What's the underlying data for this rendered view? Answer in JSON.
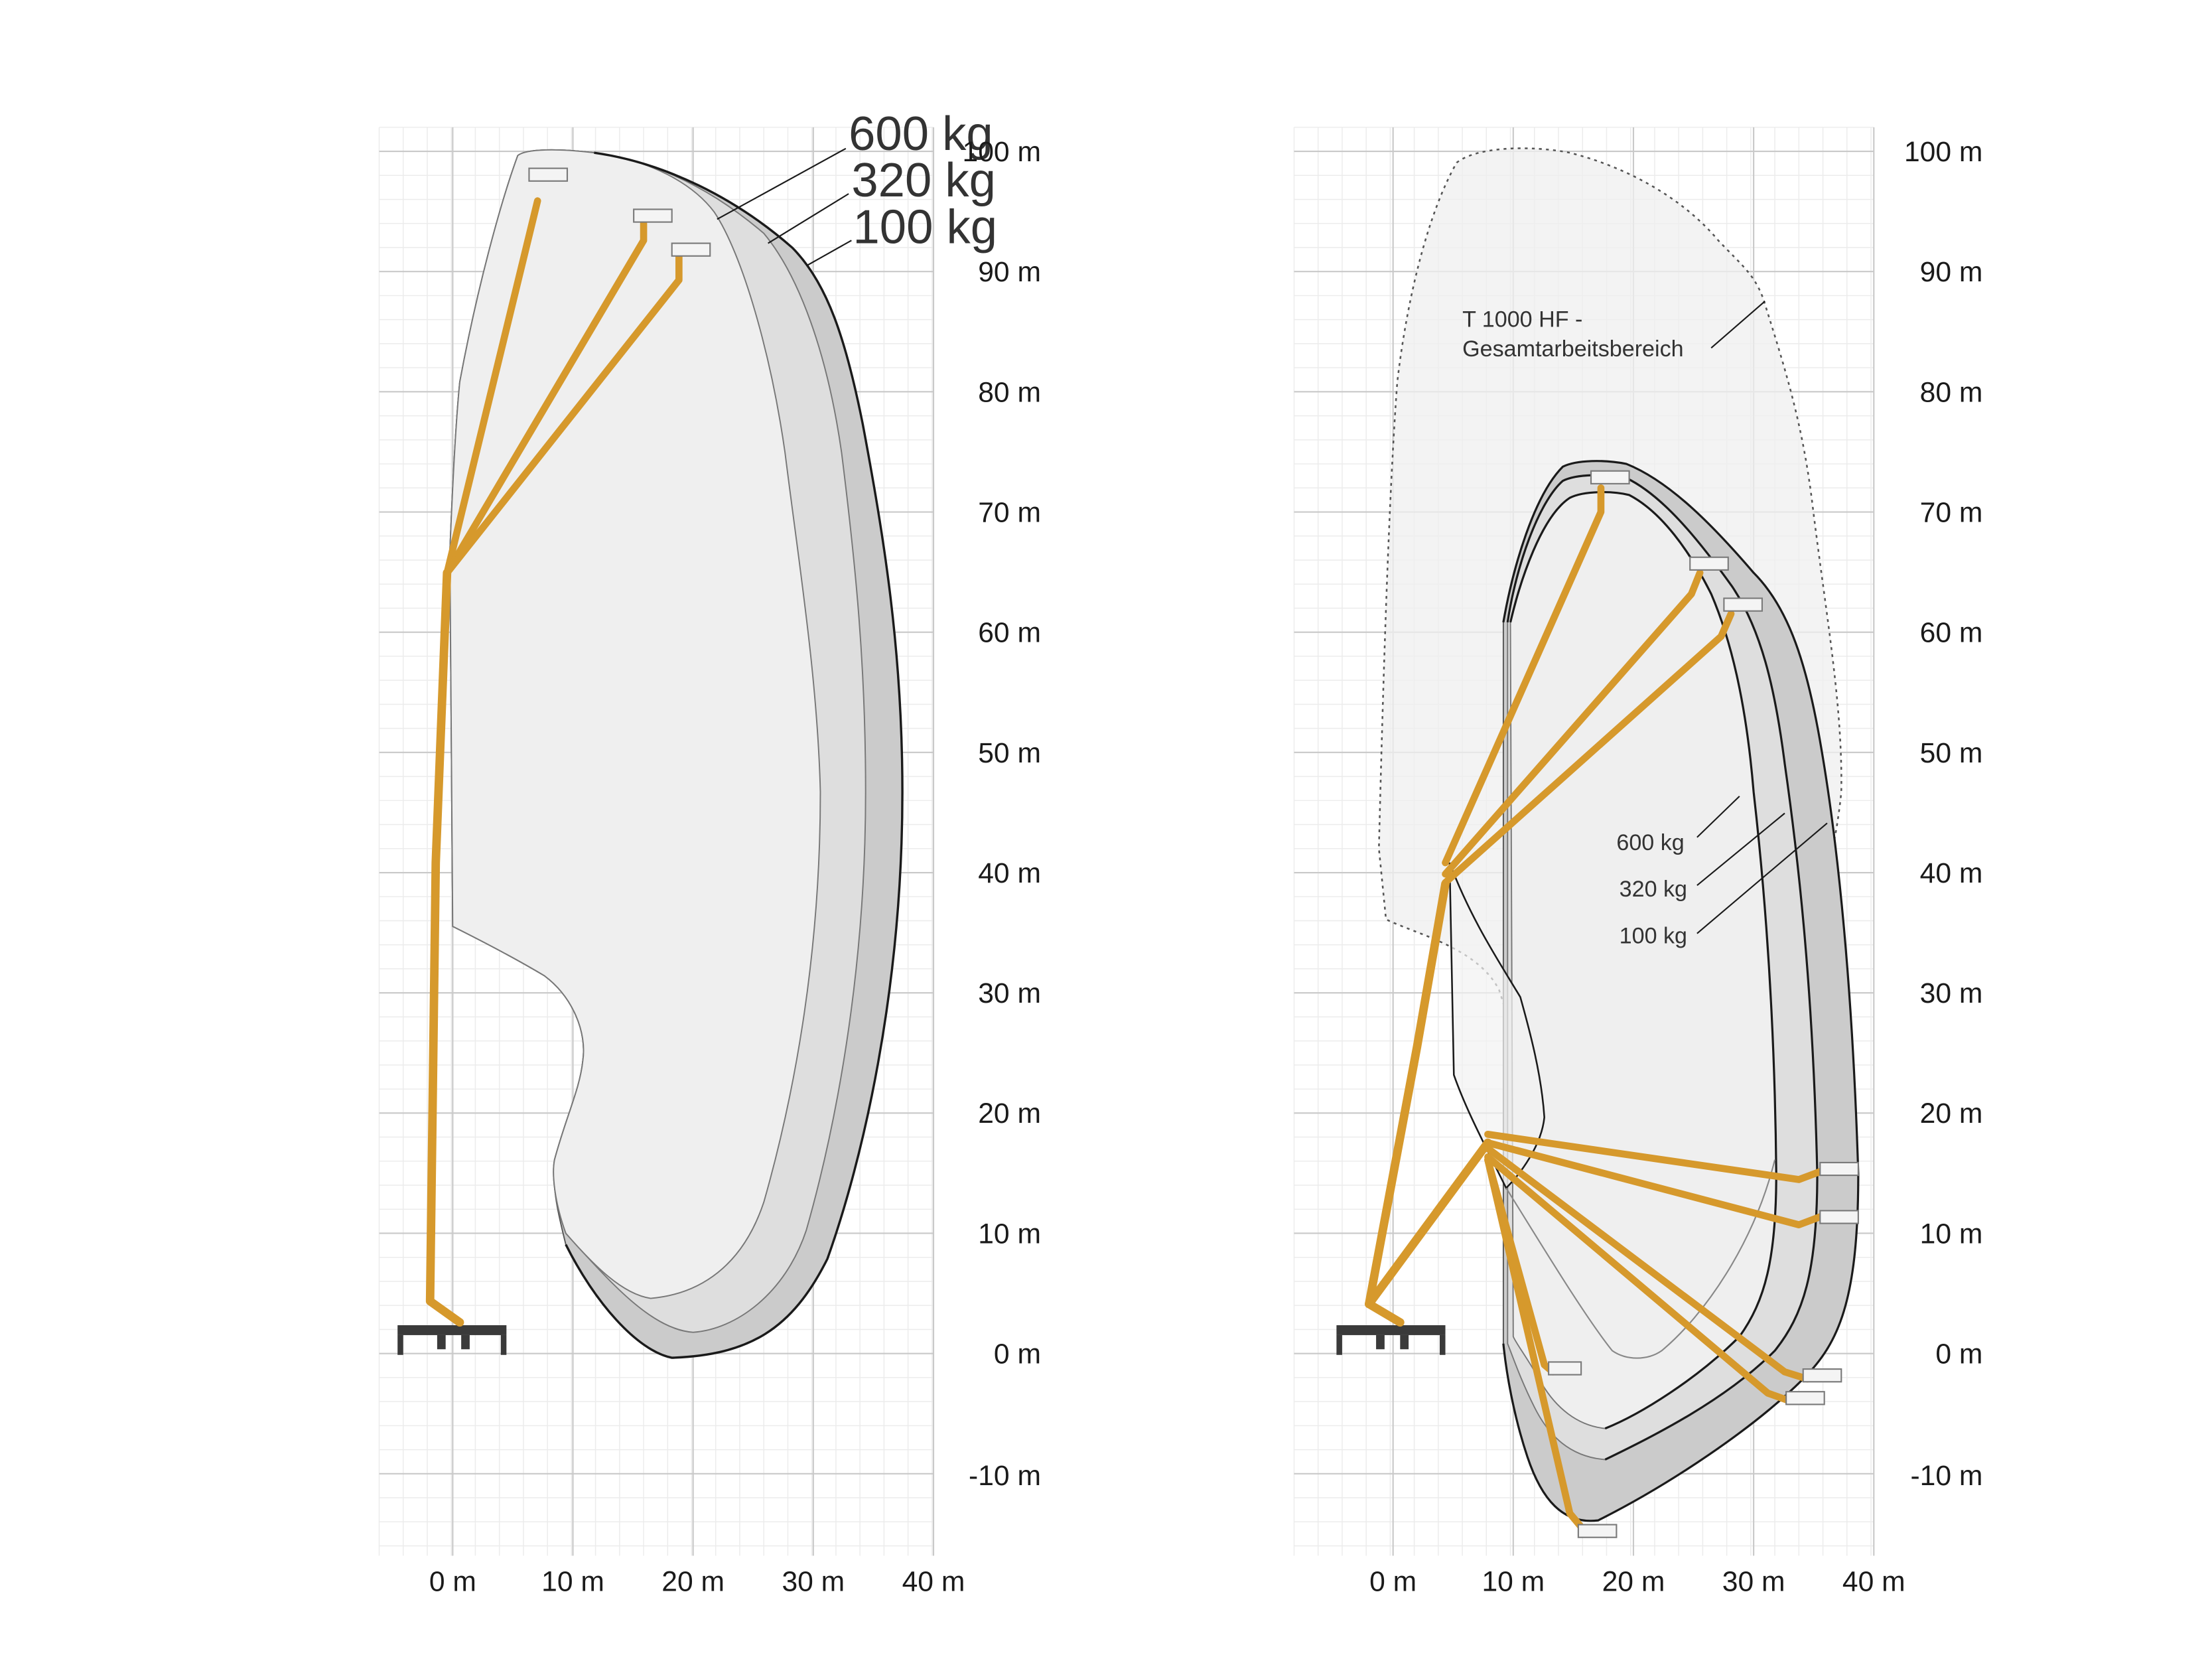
{
  "colors": {
    "boom": "#d6992c",
    "boom_joint": "#b37a18",
    "envelope_light": "#efefef",
    "envelope_mid": "#dedede",
    "envelope_dark": "#cbcbcb",
    "outline": "#1a1a1a",
    "grid_minor": "#ececec",
    "grid_major": "#c9c9c9",
    "chassis": "#3a3a3a",
    "platform": "#bdbdbd"
  },
  "left_diagram": {
    "y_ticks": [
      "100 m",
      "90 m",
      "80 m",
      "70 m",
      "60 m",
      "50 m",
      "40 m",
      "30 m",
      "20 m",
      "10 m",
      "0 m",
      "-10 m"
    ],
    "x_ticks": [
      "0 m",
      "10 m",
      "20 m",
      "30 m",
      "40 m"
    ],
    "loads": [
      "600 kg",
      "320 kg",
      "100 kg"
    ]
  },
  "right_diagram": {
    "y_ticks": [
      "100 m",
      "90 m",
      "80 m",
      "70 m",
      "60 m",
      "50 m",
      "40 m",
      "30 m",
      "20 m",
      "10 m",
      "0 m",
      "-10 m"
    ],
    "x_ticks": [
      "0 m",
      "10 m",
      "20 m",
      "30 m",
      "40 m"
    ],
    "loads": [
      "600 kg",
      "320 kg",
      "100 kg"
    ],
    "overall_area_label_line1": "T 1000 HF -",
    "overall_area_label_line2": "Gesamtarbeitsbereich"
  }
}
